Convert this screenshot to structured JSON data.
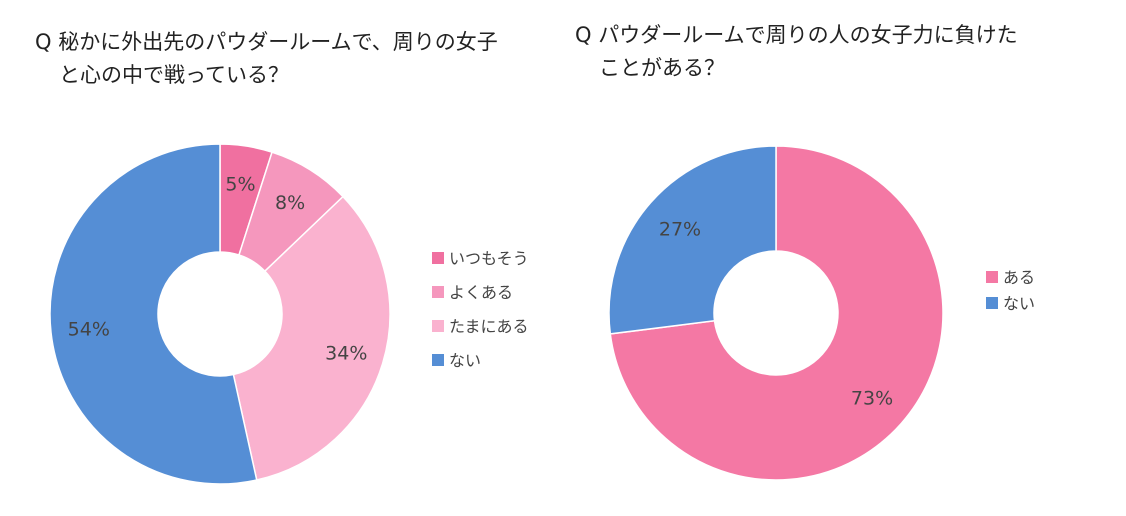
{
  "chart_data": [
    {
      "type": "pie",
      "variant": "donut",
      "title_lines": [
        "Q 秘かに外出先のパウダールームで、周りの女子",
        "と心の中で戦っている？"
      ],
      "categories": [
        "いつもそう",
        "よくある",
        "たまにある",
        "ない"
      ],
      "values": [
        5,
        8,
        34,
        54
      ],
      "value_labels": [
        "5%",
        "8%",
        "34%",
        "54%"
      ],
      "colors": [
        "#f070a0",
        "#f597bd",
        "#fab2cf",
        "#558ed5"
      ],
      "legend_position": "right",
      "start": "top",
      "direction": "clockwise"
    },
    {
      "type": "pie",
      "variant": "donut",
      "title_lines": [
        "Q パウダールームで周りの人の女子力に負けた",
        "ことがある？"
      ],
      "categories": [
        "ある",
        "ない"
      ],
      "values": [
        73,
        27
      ],
      "value_labels": [
        "73%",
        "27%"
      ],
      "colors": [
        "#f478a4",
        "#558ed5"
      ],
      "legend_position": "right",
      "start": "top",
      "direction": "clockwise"
    }
  ]
}
